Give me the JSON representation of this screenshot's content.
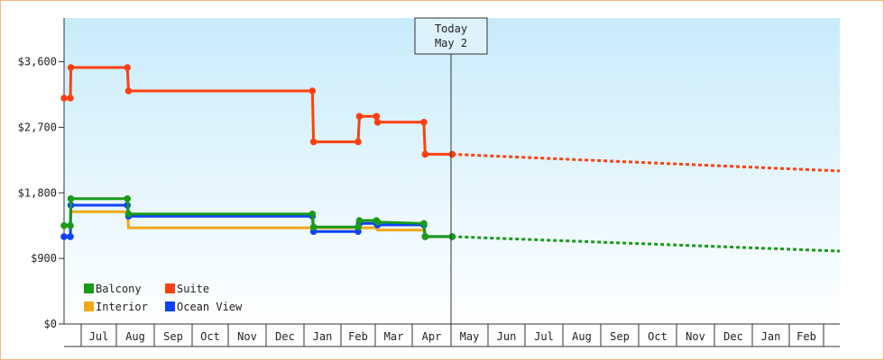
{
  "chart_data": {
    "type": "line",
    "y_ticks": [
      "$0",
      "$900",
      "$1,800",
      "$2,700",
      "$3,600"
    ],
    "y_tick_values": [
      0,
      900,
      1800,
      2700,
      3600
    ],
    "ylim": [
      0,
      4200
    ],
    "month_labels": [
      "Jul",
      "Aug",
      "Sep",
      "Oct",
      "Nov",
      "Dec",
      "Jan",
      "Feb",
      "Mar",
      "Apr",
      "May",
      "Jun",
      "Jul",
      "Aug",
      "Sep",
      "Oct",
      "Nov",
      "Dec",
      "Jan",
      "Feb"
    ],
    "x_domain": [
      "2023-06-10",
      "2024-03-01"
    ],
    "today": {
      "line1": "Today",
      "line2": "May 2",
      "date": "2023-05-02"
    },
    "legend_position": "bottom-left",
    "grid": false,
    "series": [
      {
        "name": "Balcony",
        "color": "#1a9a1a",
        "points": [
          [
            "2022-06-01",
            1350
          ],
          [
            "2022-06-12",
            1350
          ],
          [
            "2022-06-13",
            1720
          ],
          [
            "2022-08-10",
            1720
          ],
          [
            "2022-08-11",
            1510
          ],
          [
            "2023-01-08",
            1510
          ],
          [
            "2023-01-09",
            1330
          ],
          [
            "2023-02-15",
            1330
          ],
          [
            "2023-02-16",
            1420
          ],
          [
            "2023-03-02",
            1420
          ],
          [
            "2023-03-03",
            1400
          ],
          [
            "2023-04-10",
            1380
          ],
          [
            "2023-04-11",
            1200
          ],
          [
            "2023-05-02",
            1200
          ]
        ],
        "forecast": [
          [
            "2023-05-02",
            1200
          ],
          [
            "2024-03-01",
            1000
          ]
        ]
      },
      {
        "name": "Interior",
        "color": "#f0a818",
        "points": [
          [
            "2022-06-13",
            1540
          ],
          [
            "2022-08-10",
            1540
          ],
          [
            "2022-08-11",
            1320
          ],
          [
            "2023-01-08",
            1320
          ],
          [
            "2023-03-02",
            1320
          ],
          [
            "2023-03-03",
            1290
          ],
          [
            "2023-04-10",
            1290
          ],
          [
            "2023-04-11",
            1200
          ],
          [
            "2023-05-02",
            1200
          ]
        ],
        "forecast": []
      },
      {
        "name": "Suite",
        "color": "#ff4010",
        "points": [
          [
            "2022-06-01",
            3100
          ],
          [
            "2022-06-12",
            3100
          ],
          [
            "2022-06-13",
            3520
          ],
          [
            "2022-08-10",
            3520
          ],
          [
            "2022-08-11",
            3200
          ],
          [
            "2023-01-08",
            3200
          ],
          [
            "2023-01-09",
            2500
          ],
          [
            "2023-02-15",
            2500
          ],
          [
            "2023-02-16",
            2850
          ],
          [
            "2023-03-02",
            2850
          ],
          [
            "2023-03-03",
            2770
          ],
          [
            "2023-04-10",
            2770
          ],
          [
            "2023-04-11",
            2330
          ],
          [
            "2023-05-02",
            2330
          ]
        ],
        "forecast": [
          [
            "2023-05-02",
            2330
          ],
          [
            "2024-03-01",
            2100
          ]
        ]
      },
      {
        "name": "Ocean View",
        "color": "#1040ff",
        "points": [
          [
            "2022-06-01",
            1200
          ],
          [
            "2022-06-12",
            1200
          ],
          [
            "2022-06-13",
            1630
          ],
          [
            "2022-08-10",
            1630
          ],
          [
            "2022-08-11",
            1480
          ],
          [
            "2023-01-08",
            1480
          ],
          [
            "2023-01-09",
            1270
          ],
          [
            "2023-02-15",
            1270
          ],
          [
            "2023-02-16",
            1380
          ],
          [
            "2023-03-02",
            1380
          ],
          [
            "2023-03-03",
            1360
          ],
          [
            "2023-04-10",
            1360
          ],
          [
            "2023-04-11",
            1200
          ],
          [
            "2023-05-02",
            1200
          ]
        ],
        "forecast": []
      }
    ]
  },
  "legend": {
    "items": [
      {
        "label": "Balcony",
        "color": "#1a9a1a"
      },
      {
        "label": "Suite",
        "color": "#ff4010"
      },
      {
        "label": "Interior",
        "color": "#f0a818"
      },
      {
        "label": "Ocean View",
        "color": "#1040ff"
      }
    ]
  }
}
